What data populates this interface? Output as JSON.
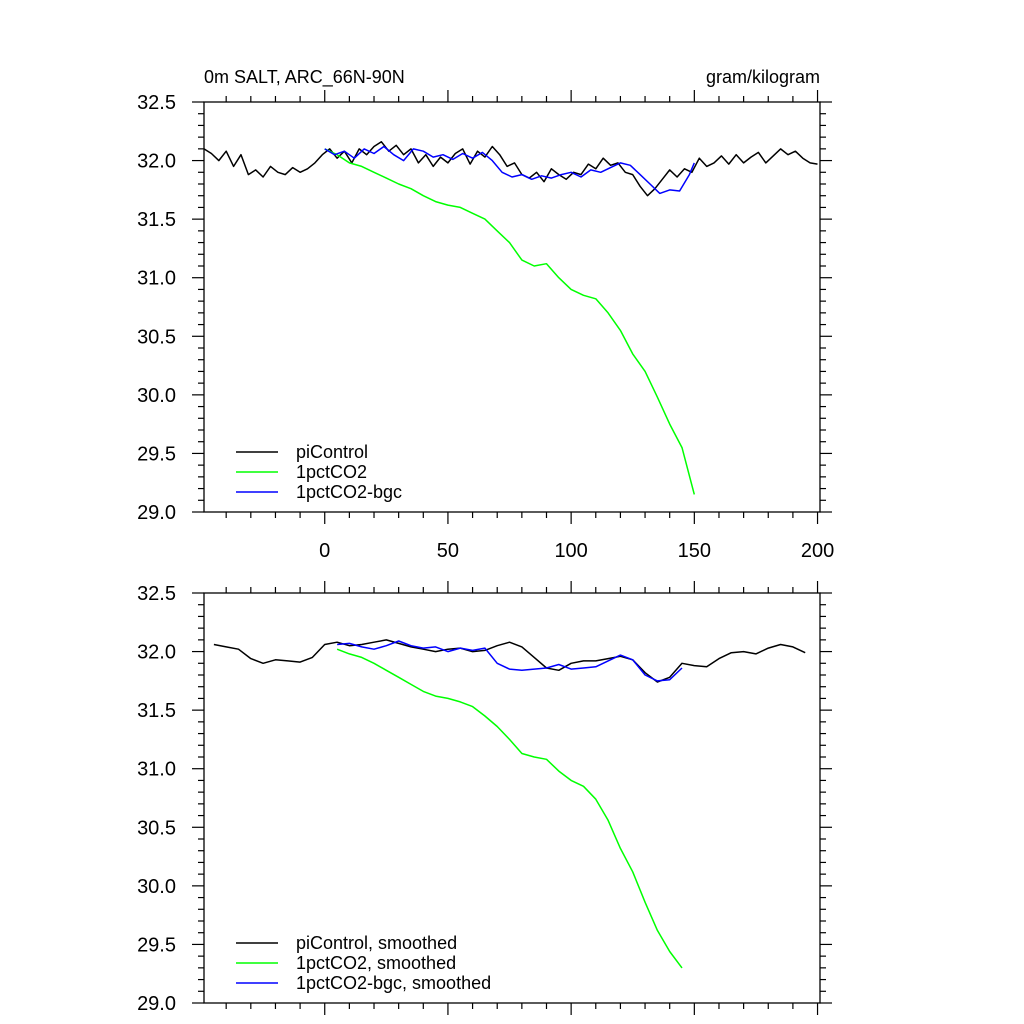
{
  "colors": {
    "piControl": "#000000",
    "1pctCO2": "#00ff00",
    "1pctCO2-bgc": "#0000ff",
    "axes": "#000000",
    "background": "#ffffff"
  },
  "chart_data": [
    {
      "type": "line",
      "title_left": "0m SALT, ARC_66N-90N",
      "title_right": "gram/kilogram",
      "xlim": [
        -49,
        201
      ],
      "ylim": [
        29.0,
        32.5
      ],
      "xticks": [
        0,
        50,
        100,
        150,
        200
      ],
      "xtick_labels": [
        "0",
        "50",
        "100",
        "150",
        "200"
      ],
      "yticks": [
        29.0,
        29.5,
        30.0,
        30.5,
        31.0,
        31.5,
        32.0,
        32.5
      ],
      "ytick_labels": [
        "29.0",
        "29.5",
        "30.0",
        "30.5",
        "31.0",
        "31.5",
        "32.0",
        "32.5"
      ],
      "grid": false,
      "legend_position": "bottom-left",
      "series": [
        {
          "name": "piControl",
          "color": "#000000",
          "x": [
            -49,
            -46,
            -43,
            -40,
            -37,
            -34,
            -31,
            -28,
            -25,
            -22,
            -19,
            -16,
            -13,
            -10,
            -7,
            -4,
            -1,
            2,
            5,
            8,
            11,
            14,
            17,
            20,
            23,
            26,
            29,
            32,
            35,
            38,
            41,
            44,
            47,
            50,
            53,
            56,
            59,
            62,
            65,
            68,
            71,
            74,
            77,
            80,
            83,
            86,
            89,
            92,
            95,
            98,
            101,
            104,
            107,
            110,
            113,
            116,
            119,
            122,
            125,
            128,
            131,
            134,
            137,
            140,
            143,
            146,
            149,
            152,
            155,
            158,
            161,
            164,
            167,
            170,
            173,
            176,
            179,
            182,
            185,
            188,
            191,
            194,
            197,
            200
          ],
          "y": [
            32.1,
            32.06,
            32.0,
            32.08,
            31.95,
            32.05,
            31.88,
            31.92,
            31.86,
            31.95,
            31.9,
            31.88,
            31.94,
            31.9,
            31.93,
            31.98,
            32.05,
            32.1,
            32.02,
            32.08,
            31.98,
            32.1,
            32.05,
            32.12,
            32.16,
            32.08,
            32.13,
            32.05,
            32.1,
            31.98,
            32.05,
            31.95,
            32.03,
            31.98,
            32.06,
            32.1,
            31.97,
            32.08,
            32.03,
            32.12,
            32.05,
            31.95,
            31.98,
            31.88,
            31.85,
            31.9,
            31.82,
            31.93,
            31.88,
            31.84,
            31.9,
            31.88,
            31.97,
            31.93,
            32.02,
            31.96,
            31.98,
            31.9,
            31.88,
            31.78,
            31.7,
            31.76,
            31.84,
            31.92,
            31.86,
            31.93,
            31.9,
            32.02,
            31.95,
            31.98,
            32.04,
            31.97,
            32.05,
            31.98,
            32.03,
            32.07,
            31.98,
            32.04,
            32.1,
            32.05,
            32.08,
            32.02,
            31.98,
            31.97
          ]
        },
        {
          "name": "1pctCO2",
          "color": "#00ff00",
          "x": [
            0,
            5,
            10,
            15,
            20,
            25,
            30,
            35,
            40,
            45,
            50,
            55,
            60,
            65,
            70,
            75,
            80,
            85,
            90,
            95,
            100,
            105,
            110,
            115,
            120,
            125,
            130,
            135,
            140,
            145,
            150
          ],
          "y": [
            32.1,
            32.05,
            31.98,
            31.95,
            31.9,
            31.85,
            31.8,
            31.76,
            31.7,
            31.65,
            31.62,
            31.6,
            31.55,
            31.5,
            31.4,
            31.3,
            31.15,
            31.1,
            31.12,
            31.0,
            30.9,
            30.85,
            30.82,
            30.7,
            30.55,
            30.35,
            30.2,
            29.98,
            29.75,
            29.55,
            29.15
          ]
        },
        {
          "name": "1pctCO2-bgc",
          "color": "#0000ff",
          "x": [
            0,
            4,
            8,
            12,
            16,
            20,
            24,
            28,
            32,
            36,
            40,
            44,
            48,
            52,
            56,
            60,
            64,
            68,
            72,
            76,
            80,
            84,
            88,
            92,
            96,
            100,
            104,
            108,
            112,
            116,
            120,
            124,
            128,
            132,
            136,
            140,
            144,
            148,
            150
          ],
          "y": [
            32.1,
            32.05,
            32.08,
            32.02,
            32.1,
            32.06,
            32.12,
            32.05,
            32.0,
            32.1,
            32.08,
            32.03,
            32.05,
            32.01,
            32.06,
            32.02,
            32.07,
            32.0,
            31.9,
            31.86,
            31.88,
            31.84,
            31.87,
            31.85,
            31.88,
            31.9,
            31.86,
            31.92,
            31.9,
            31.94,
            31.98,
            31.96,
            31.88,
            31.8,
            31.72,
            31.75,
            31.74,
            31.88,
            31.98
          ]
        }
      ]
    },
    {
      "type": "line",
      "xlim": [
        -49,
        201
      ],
      "ylim": [
        29.0,
        32.5
      ],
      "xticks": [
        0,
        50,
        100,
        150,
        200
      ],
      "yticks": [
        29.0,
        29.5,
        30.0,
        30.5,
        31.0,
        31.5,
        32.0,
        32.5
      ],
      "ytick_labels": [
        "29.0",
        "29.5",
        "30.0",
        "30.5",
        "31.0",
        "31.5",
        "32.0",
        "32.5"
      ],
      "grid": false,
      "legend_position": "bottom-left",
      "series": [
        {
          "name": "piControl, smoothed",
          "color": "#000000",
          "x": [
            -45,
            -40,
            -35,
            -30,
            -25,
            -20,
            -15,
            -10,
            -5,
            0,
            5,
            10,
            15,
            20,
            25,
            30,
            35,
            40,
            45,
            50,
            55,
            60,
            65,
            70,
            75,
            80,
            85,
            90,
            95,
            100,
            105,
            110,
            115,
            120,
            125,
            130,
            135,
            140,
            145,
            150,
            155,
            160,
            165,
            170,
            175,
            180,
            185,
            190,
            195
          ],
          "y": [
            32.06,
            32.04,
            32.02,
            31.94,
            31.9,
            31.93,
            31.92,
            31.91,
            31.95,
            32.06,
            32.08,
            32.05,
            32.06,
            32.08,
            32.1,
            32.07,
            32.04,
            32.02,
            32.0,
            32.02,
            32.03,
            32.0,
            32.01,
            32.05,
            32.08,
            32.04,
            31.95,
            31.86,
            31.84,
            31.9,
            31.92,
            31.92,
            31.94,
            31.96,
            31.93,
            31.82,
            31.74,
            31.78,
            31.9,
            31.88,
            31.87,
            31.94,
            31.99,
            32.0,
            31.98,
            32.03,
            32.06,
            32.04,
            31.99
          ]
        },
        {
          "name": "1pctCO2, smoothed",
          "color": "#00ff00",
          "x": [
            5,
            10,
            15,
            20,
            25,
            30,
            35,
            40,
            45,
            50,
            55,
            60,
            65,
            70,
            75,
            80,
            85,
            90,
            95,
            100,
            105,
            110,
            115,
            120,
            125,
            130,
            135,
            140,
            145
          ],
          "y": [
            32.02,
            31.98,
            31.95,
            31.9,
            31.84,
            31.78,
            31.72,
            31.66,
            31.62,
            31.6,
            31.57,
            31.53,
            31.45,
            31.36,
            31.25,
            31.13,
            31.1,
            31.08,
            30.98,
            30.9,
            30.85,
            30.74,
            30.56,
            30.32,
            30.12,
            29.86,
            29.62,
            29.44,
            29.3
          ]
        },
        {
          "name": "1pctCO2-bgc, smoothed",
          "color": "#0000ff",
          "x": [
            5,
            10,
            15,
            20,
            25,
            30,
            35,
            40,
            45,
            50,
            55,
            60,
            65,
            70,
            75,
            80,
            85,
            90,
            95,
            100,
            105,
            110,
            115,
            120,
            125,
            130,
            135,
            140,
            145
          ],
          "y": [
            32.06,
            32.07,
            32.04,
            32.02,
            32.05,
            32.09,
            32.05,
            32.03,
            32.04,
            32.0,
            32.03,
            32.01,
            32.03,
            31.9,
            31.85,
            31.84,
            31.85,
            31.86,
            31.89,
            31.85,
            31.86,
            31.87,
            31.92,
            31.97,
            31.93,
            31.8,
            31.75,
            31.76,
            31.86
          ]
        }
      ]
    }
  ]
}
